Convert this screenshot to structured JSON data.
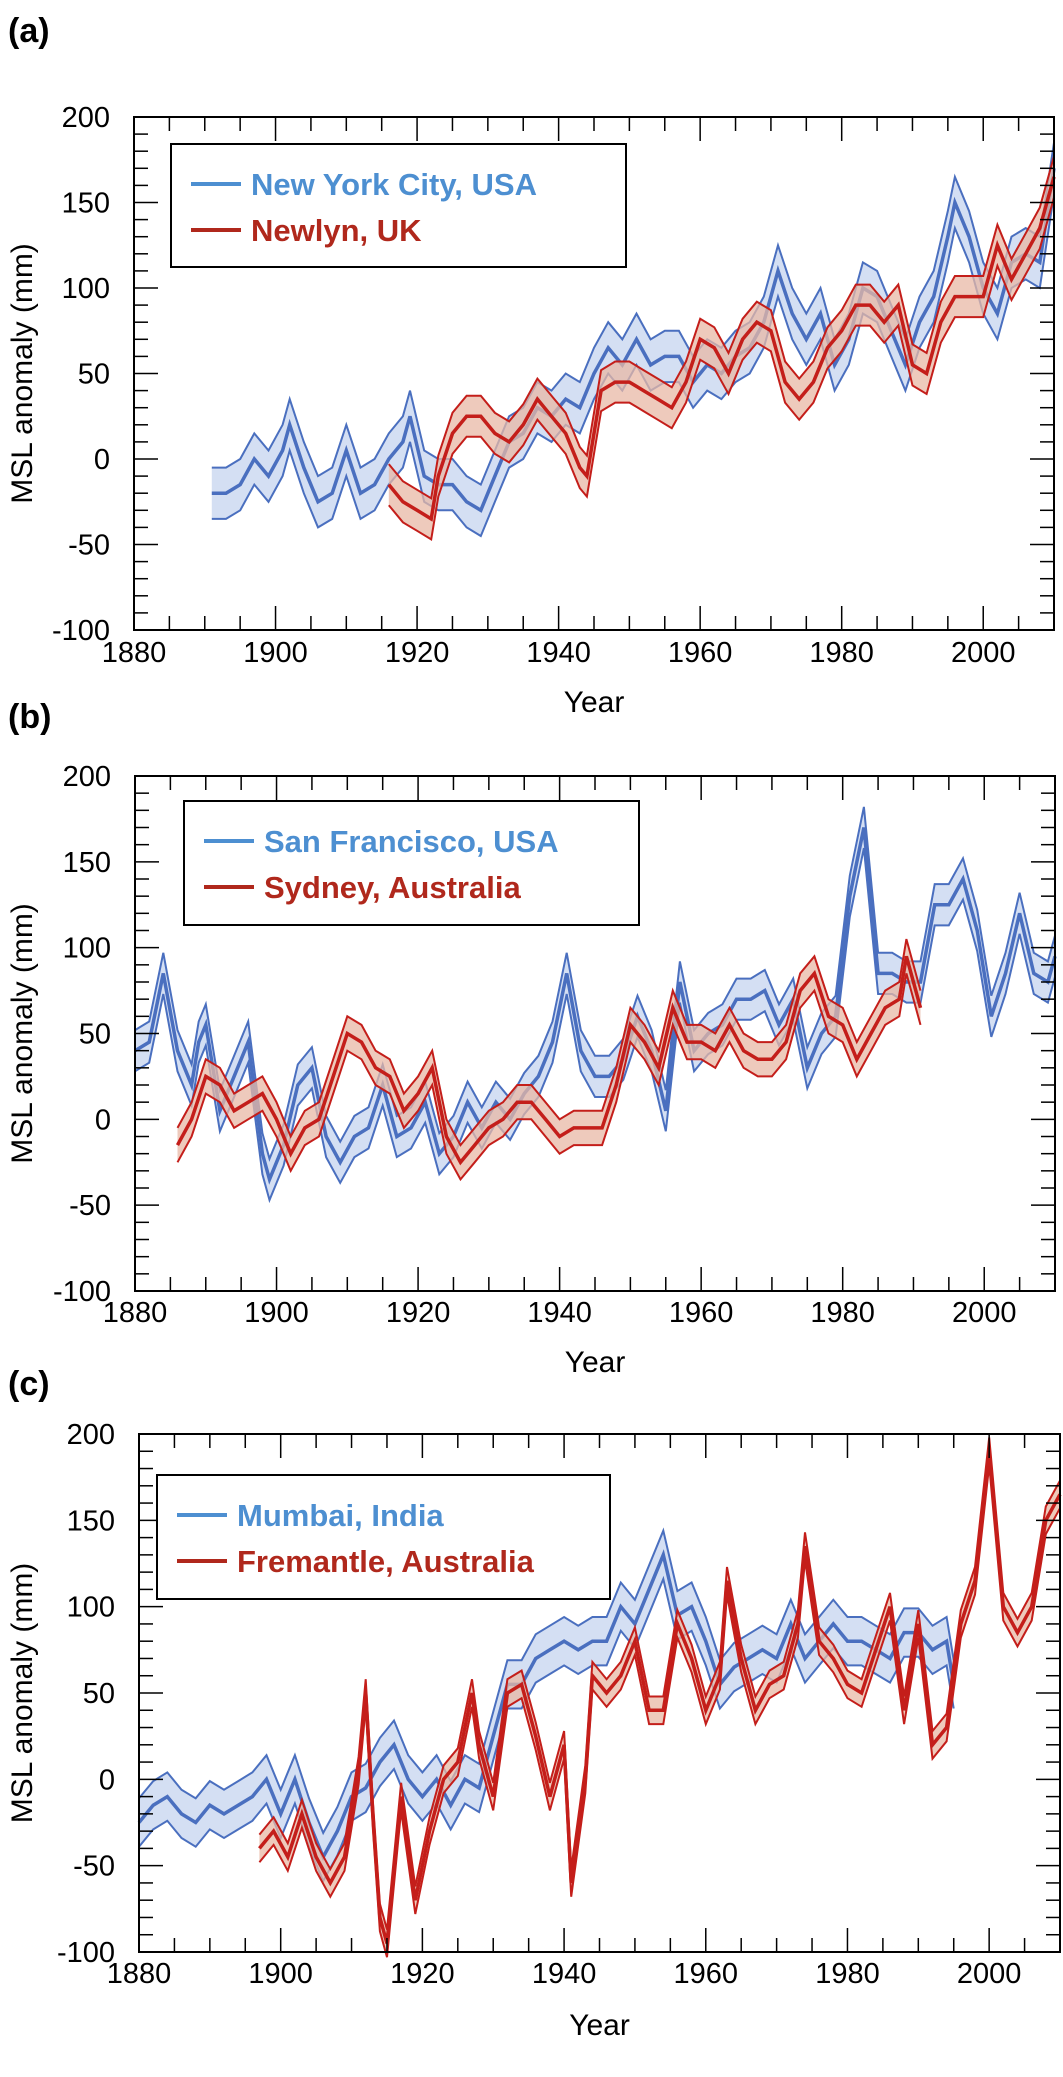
{
  "chart_data": [
    {
      "panel_label": "(a)",
      "type": "area",
      "xlabel": "Year",
      "ylabel": "MSL anomaly (mm)",
      "xlim": [
        1880,
        2010
      ],
      "ylim": [
        -100,
        200
      ],
      "x_ticks": [
        "1880",
        "1900",
        "1920",
        "1940",
        "1960",
        "1980",
        "2000"
      ],
      "y_ticks": [
        "200",
        "150",
        "100",
        "50",
        "0",
        "-50",
        "-100"
      ],
      "legend_position": "top-left",
      "series": [
        {
          "name": "New York City, USA",
          "color": "#4a6fbf",
          "fill": "#cfdcf2",
          "legend_color": "#4d8fd1",
          "band": 15,
          "x": [
            1891,
            1893,
            1895,
            1897,
            1899,
            1901,
            1902,
            1904,
            1906,
            1908,
            1910,
            1912,
            1914,
            1916,
            1918,
            1919,
            1921,
            1923,
            1925,
            1927,
            1929,
            1931,
            1933,
            1935,
            1937,
            1939,
            1941,
            1943,
            1945,
            1947,
            1949,
            1951,
            1953,
            1955,
            1957,
            1959,
            1961,
            1963,
            1965,
            1967,
            1969,
            1971,
            1973,
            1975,
            1977,
            1979,
            1981,
            1983,
            1985,
            1987,
            1989,
            1991,
            1993,
            1995,
            1996,
            1998,
            2000,
            2002,
            2004,
            2006,
            2008,
            2010
          ],
          "y": [
            -20,
            -20,
            -15,
            0,
            -10,
            5,
            20,
            -5,
            -25,
            -20,
            5,
            -20,
            -15,
            0,
            10,
            25,
            -10,
            -15,
            -15,
            -25,
            -30,
            -10,
            10,
            15,
            30,
            25,
            35,
            30,
            50,
            65,
            55,
            70,
            55,
            60,
            60,
            45,
            55,
            50,
            60,
            65,
            80,
            110,
            85,
            70,
            85,
            55,
            70,
            100,
            95,
            75,
            55,
            80,
            95,
            130,
            150,
            130,
            100,
            85,
            115,
            120,
            115,
            170
          ]
        },
        {
          "name": "Newlyn, UK",
          "color": "#c41e1a",
          "fill": "#e8b8a6",
          "legend_color": "#b0281c",
          "band": 12,
          "x": [
            1916,
            1918,
            1920,
            1922,
            1923,
            1925,
            1927,
            1929,
            1931,
            1933,
            1935,
            1937,
            1939,
            1941,
            1943,
            1944,
            1946,
            1948,
            1950,
            1952,
            1954,
            1956,
            1958,
            1960,
            1962,
            1964,
            1966,
            1968,
            1970,
            1972,
            1974,
            1976,
            1978,
            1980,
            1982,
            1984,
            1986,
            1988,
            1990,
            1992,
            1994,
            1996,
            1998,
            2000,
            2002,
            2004,
            2006,
            2008,
            2010
          ],
          "y": [
            -15,
            -25,
            -30,
            -35,
            -10,
            15,
            25,
            25,
            15,
            10,
            20,
            35,
            25,
            15,
            -5,
            -10,
            40,
            45,
            45,
            40,
            35,
            30,
            45,
            70,
            65,
            50,
            70,
            80,
            75,
            45,
            35,
            45,
            65,
            75,
            90,
            90,
            80,
            90,
            55,
            50,
            80,
            95,
            95,
            95,
            125,
            105,
            120,
            135,
            165
          ]
        }
      ]
    },
    {
      "panel_label": "(b)",
      "type": "area",
      "xlabel": "Year",
      "ylabel": "MSL anomaly (mm)",
      "xlim": [
        1880,
        2010
      ],
      "ylim": [
        -100,
        200
      ],
      "x_ticks": [
        "1880",
        "1900",
        "1920",
        "1940",
        "1960",
        "1980",
        "2000"
      ],
      "y_ticks": [
        "200",
        "150",
        "100",
        "50",
        "0",
        "-50",
        "-100"
      ],
      "legend_position": "top-left",
      "series": [
        {
          "name": "San Francisco, USA",
          "color": "#4a6fbf",
          "fill": "#cfdcf2",
          "legend_color": "#4d8fd1",
          "band": 12,
          "x": [
            1880,
            1882,
            1884,
            1886,
            1888,
            1889,
            1890,
            1892,
            1894,
            1896,
            1898,
            1899,
            1901,
            1903,
            1905,
            1907,
            1909,
            1911,
            1913,
            1915,
            1917,
            1919,
            1921,
            1923,
            1925,
            1927,
            1929,
            1931,
            1933,
            1935,
            1937,
            1939,
            1941,
            1943,
            1945,
            1947,
            1949,
            1951,
            1953,
            1955,
            1957,
            1959,
            1961,
            1963,
            1965,
            1967,
            1969,
            1971,
            1973,
            1975,
            1977,
            1979,
            1981,
            1983,
            1985,
            1987,
            1989,
            1991,
            1993,
            1995,
            1997,
            1999,
            2001,
            2003,
            2005,
            2007,
            2009,
            2010
          ],
          "y": [
            40,
            45,
            85,
            40,
            20,
            45,
            55,
            5,
            25,
            45,
            -20,
            -35,
            -15,
            20,
            30,
            -10,
            -25,
            -10,
            -5,
            20,
            -10,
            -5,
            10,
            -20,
            -10,
            10,
            -5,
            10,
            0,
            15,
            25,
            45,
            85,
            40,
            25,
            25,
            35,
            60,
            40,
            5,
            80,
            40,
            50,
            55,
            70,
            70,
            75,
            55,
            70,
            30,
            50,
            60,
            130,
            170,
            85,
            85,
            80,
            80,
            125,
            125,
            140,
            110,
            60,
            85,
            120,
            85,
            80,
            95
          ]
        },
        {
          "name": "Sydney, Australia",
          "color": "#c41e1a",
          "fill": "#e8b8a6",
          "legend_color": "#b0281c",
          "band": 10,
          "x": [
            1886,
            1888,
            1890,
            1892,
            1894,
            1896,
            1898,
            1900,
            1902,
            1904,
            1906,
            1908,
            1910,
            1912,
            1914,
            1916,
            1918,
            1920,
            1922,
            1924,
            1926,
            1928,
            1930,
            1932,
            1934,
            1936,
            1938,
            1940,
            1942,
            1944,
            1946,
            1948,
            1950,
            1952,
            1954,
            1956,
            1958,
            1960,
            1962,
            1964,
            1966,
            1968,
            1970,
            1972,
            1974,
            1976,
            1978,
            1980,
            1982,
            1984,
            1986,
            1988,
            1989,
            1991
          ],
          "y": [
            -15,
            0,
            25,
            20,
            5,
            10,
            15,
            0,
            -20,
            -5,
            0,
            25,
            50,
            45,
            30,
            25,
            5,
            15,
            30,
            -10,
            -25,
            -15,
            -5,
            0,
            10,
            10,
            0,
            -10,
            -5,
            -5,
            -5,
            20,
            55,
            45,
            30,
            65,
            45,
            45,
            40,
            55,
            40,
            35,
            35,
            45,
            75,
            85,
            60,
            55,
            35,
            50,
            65,
            70,
            95,
            65
          ]
        }
      ]
    },
    {
      "panel_label": "(c)",
      "type": "area",
      "xlabel": "Year",
      "ylabel": "MSL anomaly (mm)",
      "xlim": [
        1880,
        2010
      ],
      "ylim": [
        -100,
        200
      ],
      "x_ticks": [
        "1880",
        "1900",
        "1920",
        "1940",
        "1960",
        "1980",
        "2000"
      ],
      "y_ticks": [
        "200",
        "150",
        "100",
        "50",
        "0",
        "-50",
        "-100"
      ],
      "legend_position": "top-left",
      "series": [
        {
          "name": "Mumbai, India",
          "color": "#4a6fbf",
          "fill": "#cfdcf2",
          "legend_color": "#4d8fd1",
          "band": 14,
          "x": [
            1880,
            1882,
            1884,
            1886,
            1888,
            1890,
            1892,
            1894,
            1896,
            1898,
            1900,
            1902,
            1904,
            1906,
            1908,
            1910,
            1912,
            1914,
            1916,
            1918,
            1920,
            1922,
            1924,
            1926,
            1928,
            1930,
            1932,
            1934,
            1936,
            1938,
            1940,
            1942,
            1944,
            1946,
            1948,
            1950,
            1952,
            1954,
            1956,
            1958,
            1960,
            1962,
            1964,
            1966,
            1968,
            1970,
            1972,
            1974,
            1976,
            1978,
            1980,
            1982,
            1984,
            1986,
            1988,
            1990,
            1992,
            1994,
            1995
          ],
          "y": [
            -25,
            -15,
            -10,
            -20,
            -25,
            -15,
            -20,
            -15,
            -10,
            0,
            -20,
            0,
            -25,
            -45,
            -30,
            -10,
            -5,
            10,
            20,
            0,
            -10,
            0,
            -15,
            0,
            -5,
            25,
            55,
            55,
            70,
            75,
            80,
            75,
            80,
            80,
            100,
            90,
            110,
            130,
            95,
            100,
            80,
            55,
            65,
            70,
            75,
            70,
            90,
            70,
            80,
            90,
            80,
            80,
            75,
            70,
            85,
            85,
            75,
            80,
            55
          ]
        },
        {
          "name": "Fremantle, Australia",
          "color": "#c41e1a",
          "fill": "#e8b8a6",
          "legend_color": "#b0281c",
          "band": 8,
          "x": [
            1897,
            1899,
            1901,
            1903,
            1905,
            1907,
            1909,
            1911,
            1912,
            1913,
            1914,
            1915,
            1917,
            1919,
            1921,
            1923,
            1925,
            1927,
            1928,
            1930,
            1932,
            1934,
            1936,
            1938,
            1940,
            1941,
            1943,
            1944,
            1946,
            1948,
            1950,
            1952,
            1954,
            1956,
            1958,
            1960,
            1962,
            1963,
            1965,
            1967,
            1969,
            1971,
            1973,
            1974,
            1976,
            1978,
            1980,
            1982,
            1984,
            1986,
            1988,
            1990,
            1992,
            1994,
            1996,
            1998,
            2000,
            2002,
            2004,
            2006,
            2008,
            2010
          ],
          "y": [
            -40,
            -30,
            -45,
            -20,
            -45,
            -60,
            -45,
            5,
            50,
            -20,
            -80,
            -95,
            -10,
            -70,
            -30,
            0,
            10,
            50,
            20,
            -10,
            50,
            55,
            25,
            -10,
            20,
            -60,
            0,
            60,
            50,
            60,
            80,
            40,
            40,
            90,
            70,
            40,
            60,
            115,
            70,
            40,
            55,
            60,
            90,
            135,
            80,
            70,
            55,
            50,
            75,
            100,
            40,
            90,
            20,
            30,
            90,
            115,
            190,
            100,
            85,
            100,
            150,
            165
          ]
        }
      ]
    }
  ]
}
